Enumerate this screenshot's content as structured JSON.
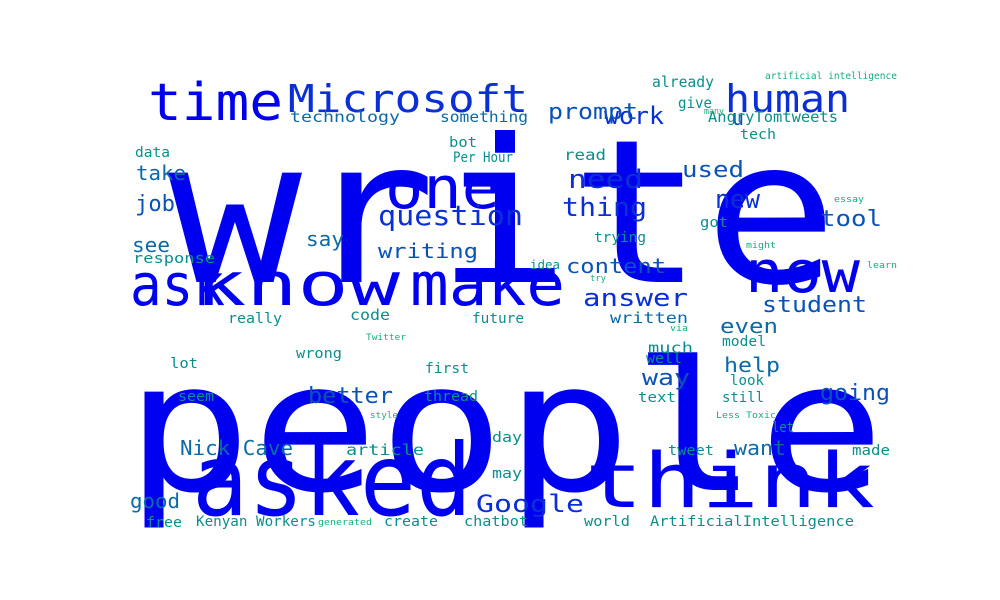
{
  "palette": {
    "c1": "#0000f0",
    "c2": "#0a2fd6",
    "c3": "#0a52b8",
    "c4": "#0b6aa6",
    "c5": "#0a8f8c",
    "c6": "#11b07f"
  },
  "words": [
    {
      "text": "write",
      "color": "c1"
    },
    {
      "text": "people",
      "color": "c1"
    },
    {
      "text": "asked",
      "color": "c1"
    },
    {
      "text": "think",
      "color": "c1"
    },
    {
      "text": "know",
      "color": "c1"
    },
    {
      "text": "make",
      "color": "c1"
    },
    {
      "text": "ask",
      "color": "c1"
    },
    {
      "text": "now",
      "color": "c1"
    },
    {
      "text": "time",
      "color": "c1"
    },
    {
      "text": "one",
      "color": "c1"
    },
    {
      "text": "human",
      "color": "c2"
    },
    {
      "text": "Microsoft",
      "color": "c2"
    },
    {
      "text": "question",
      "color": "c2"
    },
    {
      "text": "answer",
      "color": "c2"
    },
    {
      "text": "need",
      "color": "c2"
    },
    {
      "text": "thing",
      "color": "c2"
    },
    {
      "text": "work",
      "color": "c2"
    },
    {
      "text": "new",
      "color": "c2"
    },
    {
      "text": "Google",
      "color": "c2"
    },
    {
      "text": "prompt",
      "color": "c3"
    },
    {
      "text": "tool",
      "color": "c3"
    },
    {
      "text": "content",
      "color": "c3"
    },
    {
      "text": "student",
      "color": "c3"
    },
    {
      "text": "writing",
      "color": "c3"
    },
    {
      "text": "better",
      "color": "c3"
    },
    {
      "text": "way",
      "color": "c3"
    },
    {
      "text": "going",
      "color": "c3"
    },
    {
      "text": "used",
      "color": "c3"
    },
    {
      "text": "u",
      "color": "c3"
    },
    {
      "text": "job",
      "color": "c3"
    },
    {
      "text": "take",
      "color": "c4"
    },
    {
      "text": "see",
      "color": "c4"
    },
    {
      "text": "say",
      "color": "c4"
    },
    {
      "text": "help",
      "color": "c4"
    },
    {
      "text": "even",
      "color": "c4"
    },
    {
      "text": "good",
      "color": "c4"
    },
    {
      "text": "Nick Cave",
      "color": "c4"
    },
    {
      "text": "want",
      "color": "c4"
    },
    {
      "text": "technology",
      "color": "c4"
    },
    {
      "text": "something",
      "color": "c4"
    },
    {
      "text": "written",
      "color": "c4"
    },
    {
      "text": "much",
      "color": "c5"
    },
    {
      "text": "article",
      "color": "c5"
    },
    {
      "text": "give",
      "color": "c5"
    },
    {
      "text": "already",
      "color": "c5"
    },
    {
      "text": "AngryTomtweets",
      "color": "c5"
    },
    {
      "text": "read",
      "color": "c5"
    },
    {
      "text": "code",
      "color": "c5"
    },
    {
      "text": "data",
      "color": "c5"
    },
    {
      "text": "bot",
      "color": "c5"
    },
    {
      "text": "Per Hour",
      "color": "c5"
    },
    {
      "text": "tech",
      "color": "c5"
    },
    {
      "text": "response",
      "color": "c5"
    },
    {
      "text": "trying",
      "color": "c5"
    },
    {
      "text": "got",
      "color": "c5"
    },
    {
      "text": "idea",
      "color": "c5"
    },
    {
      "text": "really",
      "color": "c5"
    },
    {
      "text": "future",
      "color": "c5"
    },
    {
      "text": "wrong",
      "color": "c5"
    },
    {
      "text": "lot",
      "color": "c5"
    },
    {
      "text": "first",
      "color": "c5"
    },
    {
      "text": "well",
      "color": "c5"
    },
    {
      "text": "model",
      "color": "c5"
    },
    {
      "text": "seem",
      "color": "c5"
    },
    {
      "text": "thread",
      "color": "c5"
    },
    {
      "text": "text",
      "color": "c5"
    },
    {
      "text": "look",
      "color": "c5"
    },
    {
      "text": "still",
      "color": "c5"
    },
    {
      "text": "let",
      "color": "c5"
    },
    {
      "text": "day",
      "color": "c5"
    },
    {
      "text": "tweet",
      "color": "c5"
    },
    {
      "text": "made",
      "color": "c5"
    },
    {
      "text": "may",
      "color": "c5"
    },
    {
      "text": "free",
      "color": "c5"
    },
    {
      "text": "Kenyan Workers",
      "color": "c5"
    },
    {
      "text": "create",
      "color": "c5"
    },
    {
      "text": "chatbot",
      "color": "c5"
    },
    {
      "text": "world",
      "color": "c5"
    },
    {
      "text": "ArtificialIntelligence",
      "color": "c5"
    },
    {
      "text": "artificial intelligence",
      "color": "c6"
    },
    {
      "text": "many",
      "color": "c6"
    },
    {
      "text": "essay",
      "color": "c6"
    },
    {
      "text": "might",
      "color": "c6"
    },
    {
      "text": "learn",
      "color": "c6"
    },
    {
      "text": "try",
      "color": "c6"
    },
    {
      "text": "via",
      "color": "c6"
    },
    {
      "text": "Twitter",
      "color": "c6"
    },
    {
      "text": "style",
      "color": "c6"
    },
    {
      "text": "Less Toxic",
      "color": "c6"
    },
    {
      "text": "generated",
      "color": "c6"
    }
  ]
}
